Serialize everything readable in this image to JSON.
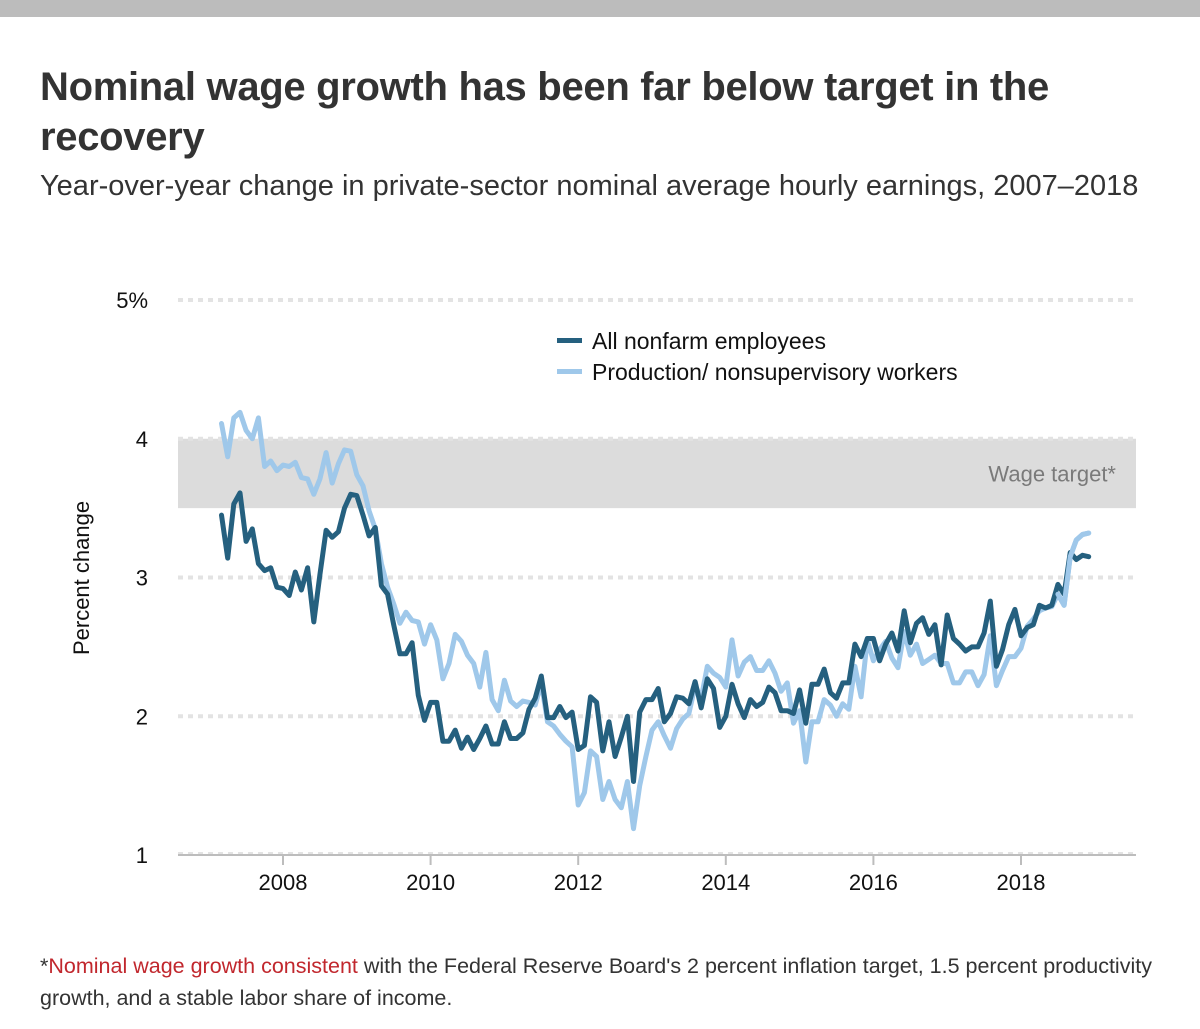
{
  "header": {
    "title": "Nominal wage growth has been far below target in the recovery",
    "subtitle": "Year-over-year change in private-sector nominal average hourly earnings, 2007–2018"
  },
  "footnote": {
    "asterisk": "*",
    "highlight": "Nominal wage growth consistent",
    "rest": " with the Federal Reserve Board's 2 percent inflation target, 1.5 percent productivity growth, and a stable labor share of income."
  },
  "colors": {
    "all_nonfarm": "#25607f",
    "production": "#9fc8ea",
    "band": "#dcdcdc",
    "gridline": "#e3e3e3",
    "footnote_highlight": "#c1272d"
  },
  "chart_data": {
    "type": "line",
    "title": "Nominal wage growth has been far below target in the recovery",
    "subtitle": "Year-over-year change in private-sector nominal average hourly earnings, 2007–2018",
    "xlabel": "",
    "ylabel": "Percent change",
    "ylim": [
      1,
      5
    ],
    "xlim": [
      2006.6,
      2019.5
    ],
    "yticks": [
      1,
      2,
      3,
      4,
      5
    ],
    "ytick_labels": [
      "1",
      "2",
      "3",
      "4",
      "5%"
    ],
    "xticks": [
      2008,
      2010,
      2012,
      2014,
      2016,
      2018
    ],
    "xtick_labels": [
      "2008",
      "2010",
      "2012",
      "2014",
      "2016",
      "2018"
    ],
    "grid": "horizontal dotted",
    "legend": "top-center",
    "start": "2007-03",
    "frequency": "monthly",
    "bands": [
      {
        "label": "Wage target*",
        "from": 3.5,
        "to": 4.0
      }
    ],
    "series": [
      {
        "name": "All nonfarm employees",
        "values": [
          3.45,
          3.14,
          3.53,
          3.61,
          3.26,
          3.35,
          3.1,
          3.05,
          3.07,
          2.93,
          2.92,
          2.87,
          3.04,
          2.91,
          3.07,
          2.68,
          3.02,
          3.34,
          3.29,
          3.33,
          3.5,
          3.6,
          3.59,
          3.45,
          3.3,
          3.36,
          2.94,
          2.88,
          2.66,
          2.45,
          2.45,
          2.53,
          2.15,
          1.97,
          2.1,
          2.1,
          1.82,
          1.82,
          1.9,
          1.77,
          1.85,
          1.76,
          1.84,
          1.93,
          1.8,
          1.8,
          1.96,
          1.84,
          1.84,
          1.88,
          2.05,
          2.13,
          2.29,
          1.99,
          1.99,
          2.07,
          1.99,
          2.03,
          1.76,
          1.79,
          2.14,
          2.1,
          1.75,
          1.96,
          1.71,
          1.85,
          2.0,
          1.53,
          2.03,
          2.12,
          2.12,
          2.2,
          1.96,
          2.02,
          2.14,
          2.13,
          2.09,
          2.25,
          2.06,
          2.27,
          2.2,
          1.92,
          2.0,
          2.23,
          2.09,
          1.99,
          2.12,
          2.07,
          2.1,
          2.21,
          2.17,
          2.04,
          2.04,
          2.02,
          2.19,
          1.95,
          2.23,
          2.23,
          2.34,
          2.17,
          2.13,
          2.24,
          2.24,
          2.52,
          2.43,
          2.56,
          2.56,
          2.4,
          2.52,
          2.6,
          2.47,
          2.76,
          2.53,
          2.67,
          2.71,
          2.59,
          2.66,
          2.37,
          2.73,
          2.56,
          2.52,
          2.47,
          2.5,
          2.5,
          2.6,
          2.83,
          2.36,
          2.48,
          2.66,
          2.77,
          2.58,
          2.64,
          2.66,
          2.8,
          2.78,
          2.8,
          2.95,
          2.88,
          3.18,
          3.13,
          3.16,
          3.15
        ]
      },
      {
        "name": "Production/ nonsupervisory workers",
        "values": [
          4.11,
          3.87,
          4.15,
          4.19,
          4.06,
          4.0,
          4.15,
          3.8,
          3.84,
          3.77,
          3.81,
          3.8,
          3.83,
          3.72,
          3.71,
          3.6,
          3.71,
          3.9,
          3.68,
          3.82,
          3.92,
          3.91,
          3.74,
          3.66,
          3.48,
          3.35,
          3.1,
          2.93,
          2.81,
          2.67,
          2.75,
          2.69,
          2.68,
          2.52,
          2.66,
          2.55,
          2.27,
          2.38,
          2.59,
          2.54,
          2.44,
          2.38,
          2.21,
          2.46,
          2.12,
          2.04,
          2.26,
          2.11,
          2.07,
          2.11,
          2.1,
          2.08,
          2.24,
          1.96,
          1.93,
          1.87,
          1.82,
          1.78,
          1.36,
          1.45,
          1.75,
          1.71,
          1.4,
          1.53,
          1.4,
          1.34,
          1.53,
          1.19,
          1.5,
          1.71,
          1.9,
          1.96,
          1.86,
          1.77,
          1.91,
          1.98,
          2.02,
          2.22,
          2.13,
          2.36,
          2.31,
          2.28,
          2.21,
          2.55,
          2.29,
          2.39,
          2.43,
          2.33,
          2.33,
          2.4,
          2.31,
          2.18,
          2.24,
          1.95,
          2.04,
          1.67,
          1.96,
          1.96,
          2.12,
          2.08,
          2.0,
          2.09,
          2.05,
          2.36,
          2.14,
          2.55,
          2.4,
          2.48,
          2.54,
          2.42,
          2.35,
          2.61,
          2.44,
          2.52,
          2.38,
          2.41,
          2.44,
          2.38,
          2.38,
          2.24,
          2.24,
          2.32,
          2.32,
          2.22,
          2.3,
          2.58,
          2.22,
          2.33,
          2.43,
          2.43,
          2.49,
          2.65,
          2.7,
          2.76,
          2.78,
          2.79,
          2.88,
          2.8,
          3.15,
          3.27,
          3.31,
          3.32
        ]
      }
    ]
  }
}
